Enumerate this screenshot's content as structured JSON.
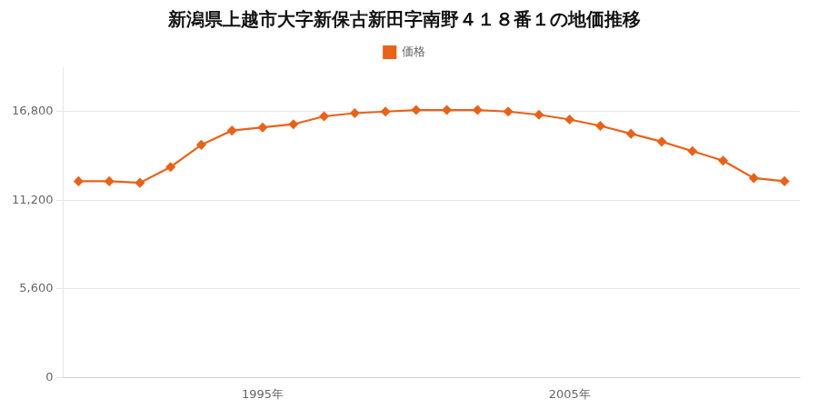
{
  "chart_data": {
    "type": "line",
    "title": "新潟県上越市大字新保古新田字南野４１８番１の地価推移",
    "x": [
      1989,
      1990,
      1991,
      1992,
      1993,
      1994,
      1995,
      1996,
      1997,
      1998,
      1999,
      2000,
      2001,
      2002,
      2003,
      2004,
      2005,
      2006,
      2007,
      2008,
      2009,
      2010,
      2011,
      2012
    ],
    "series": [
      {
        "name": "価格",
        "color": "#e8621a",
        "marker": "diamond",
        "values": [
          12400,
          12400,
          12300,
          13300,
          14700,
          15600,
          15800,
          16000,
          16500,
          16700,
          16800,
          16900,
          16900,
          16900,
          16800,
          16600,
          16300,
          15900,
          15400,
          14900,
          14300,
          13700,
          12600,
          12400
        ]
      }
    ],
    "xlim": [
      1988.5,
      2012.5
    ],
    "xticks": [
      {
        "value": 1995,
        "label": "1995年"
      },
      {
        "value": 2005,
        "label": "2005年"
      }
    ],
    "ylim": [
      0,
      19600
    ],
    "yticks": [
      0,
      {
        "value": 5600,
        "label": "5,600"
      },
      {
        "value": 11200,
        "label": "11,200"
      },
      {
        "value": 16800,
        "label": "16,800"
      }
    ],
    "grid": "y",
    "legend": "top"
  }
}
